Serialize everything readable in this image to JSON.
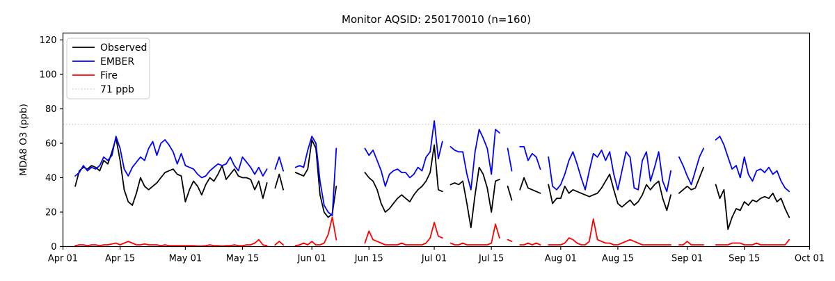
{
  "chart_data": {
    "type": "line",
    "title": "Monitor AQSID: 250170010 (n=160)",
    "ylabel": "MDA8 O3 (ppb)",
    "xlabel": "",
    "n_points": 160,
    "ylim": [
      0,
      124
    ],
    "grid": false,
    "legend_position": "upper left",
    "y_ticks": [
      0,
      20,
      40,
      60,
      80,
      100,
      120
    ],
    "x_ticks": [
      {
        "label": "Apr 01",
        "day": 0
      },
      {
        "label": "Apr 15",
        "day": 14
      },
      {
        "label": "May 01",
        "day": 30
      },
      {
        "label": "May 15",
        "day": 44
      },
      {
        "label": "Jun 01",
        "day": 61
      },
      {
        "label": "Jun 15",
        "day": 75
      },
      {
        "label": "Jul 01",
        "day": 91
      },
      {
        "label": "Jul 15",
        "day": 105
      },
      {
        "label": "Aug 01",
        "day": 122
      },
      {
        "label": "Aug 15",
        "day": 136
      },
      {
        "label": "Sep 01",
        "day": 153
      },
      {
        "label": "Sep 15",
        "day": 167
      },
      {
        "label": "Oct 01",
        "day": 183
      }
    ],
    "threshold": {
      "value": 71,
      "label": "71 ppb",
      "color": "#c9c9c9",
      "style": "dotted"
    },
    "legend": [
      {
        "label": "Observed",
        "color": "#000000",
        "style": "solid"
      },
      {
        "label": "EMBER",
        "color": "#0000ff",
        "style": "solid"
      },
      {
        "label": "Fire",
        "color": "#ff0000",
        "style": "solid"
      },
      {
        "label": "71 ppb",
        "color": "#c9c9c9",
        "style": "dotted"
      }
    ],
    "series_start": {
      "label": "Apr 04",
      "day_offset": 3
    },
    "series": [
      {
        "name": "Observed",
        "color": "#000000",
        "values": [
          35,
          44,
          46,
          45,
          47,
          46,
          44,
          50,
          48,
          55,
          63,
          50,
          33,
          26,
          24,
          31,
          40,
          35,
          33,
          35,
          37,
          40,
          43,
          44,
          45,
          42,
          41,
          26,
          33,
          38,
          35,
          30,
          36,
          40,
          38,
          42,
          47,
          39,
          42,
          45,
          41,
          40,
          40,
          39,
          33,
          38,
          28,
          37,
          null,
          34,
          42,
          33,
          null,
          null,
          43,
          42,
          41,
          45,
          62,
          57,
          30,
          20,
          17,
          19,
          35,
          null,
          null,
          null,
          null,
          null,
          null,
          43,
          40,
          38,
          33,
          25,
          20,
          22,
          25,
          28,
          30,
          28,
          26,
          30,
          33,
          35,
          38,
          43,
          59,
          33,
          32,
          null,
          36,
          37,
          36,
          38,
          25,
          11,
          30,
          46,
          42,
          34,
          20,
          38,
          39,
          null,
          35,
          27,
          null,
          33,
          40,
          34,
          33,
          32,
          31,
          null,
          36,
          25,
          28,
          28,
          35,
          31,
          33,
          32,
          31,
          30,
          29,
          30,
          31,
          34,
          38,
          42,
          33,
          25,
          23,
          25,
          27,
          24,
          26,
          30,
          36,
          33,
          36,
          38,
          28,
          21,
          30,
          null,
          31,
          33,
          35,
          33,
          34,
          40,
          46,
          null,
          null,
          36,
          28,
          33,
          10,
          17,
          22,
          21,
          26,
          24,
          27,
          26,
          28,
          29,
          28,
          31,
          26,
          28,
          22,
          17
        ]
      },
      {
        "name": "EMBER",
        "color": "#0000ff",
        "values": [
          41,
          43,
          47,
          44,
          46,
          45,
          47,
          52,
          50,
          53,
          64,
          57,
          45,
          41,
          46,
          49,
          52,
          50,
          57,
          61,
          53,
          60,
          62,
          59,
          55,
          48,
          54,
          47,
          46,
          45,
          42,
          40,
          41,
          44,
          46,
          48,
          47,
          48,
          52,
          47,
          44,
          52,
          49,
          46,
          42,
          46,
          41,
          45,
          null,
          45,
          52,
          44,
          null,
          null,
          46,
          47,
          46,
          56,
          64,
          60,
          38,
          24,
          20,
          18,
          57,
          null,
          null,
          null,
          null,
          null,
          null,
          57,
          53,
          56,
          50,
          44,
          35,
          42,
          44,
          45,
          43,
          43,
          40,
          42,
          46,
          44,
          52,
          55,
          73,
          51,
          61,
          null,
          58,
          56,
          55,
          55,
          42,
          33,
          55,
          68,
          63,
          57,
          42,
          68,
          66,
          null,
          57,
          44,
          null,
          58,
          58,
          50,
          54,
          52,
          45,
          null,
          52,
          35,
          33,
          36,
          42,
          50,
          55,
          48,
          40,
          33,
          44,
          54,
          52,
          56,
          50,
          55,
          42,
          33,
          44,
          55,
          52,
          34,
          33,
          50,
          55,
          38,
          46,
          55,
          38,
          32,
          44,
          null,
          52,
          47,
          41,
          36,
          44,
          52,
          57,
          null,
          null,
          62,
          64,
          59,
          52,
          45,
          47,
          40,
          52,
          42,
          38,
          44,
          45,
          43,
          46,
          42,
          44,
          38,
          34,
          32
        ]
      },
      {
        "name": "Fire",
        "color": "#ff0000",
        "values": [
          0.5,
          1,
          1,
          0.5,
          1,
          1,
          0.5,
          1,
          1,
          1.5,
          2,
          1,
          2,
          3,
          2,
          1,
          1,
          1.5,
          1,
          1,
          1,
          0.5,
          1,
          0.5,
          0.5,
          0.5,
          0.5,
          0.5,
          0.5,
          0.5,
          0.3,
          0.3,
          0.5,
          1,
          0.5,
          0.5,
          0.3,
          0.5,
          0.5,
          1,
          0.5,
          0.5,
          1,
          1,
          2,
          4,
          1,
          0.5,
          null,
          1,
          3,
          1,
          null,
          null,
          0.5,
          1,
          2,
          1,
          3,
          1,
          1,
          2,
          7,
          17,
          4,
          null,
          null,
          null,
          null,
          null,
          null,
          2,
          9,
          4,
          3,
          2,
          1,
          1,
          1,
          1,
          2,
          1,
          1,
          1,
          1,
          1,
          2,
          5,
          14,
          6,
          5,
          null,
          2,
          1,
          1,
          2,
          1,
          1,
          1,
          1,
          1,
          1,
          2,
          13,
          5,
          null,
          4,
          3,
          null,
          1,
          1,
          2,
          1,
          2,
          1,
          null,
          1,
          1,
          1,
          1,
          2,
          5,
          4,
          2,
          1,
          1,
          3,
          16,
          4,
          3,
          2,
          2,
          1,
          1,
          2,
          3,
          4,
          3,
          2,
          1,
          1,
          1,
          1,
          1,
          1,
          1,
          1,
          null,
          1,
          1,
          3,
          1,
          1,
          1,
          1,
          null,
          null,
          1,
          1,
          1,
          1,
          2,
          2,
          2,
          1,
          1,
          1,
          2,
          1,
          1,
          1,
          1,
          1,
          1,
          1,
          4
        ]
      }
    ]
  }
}
